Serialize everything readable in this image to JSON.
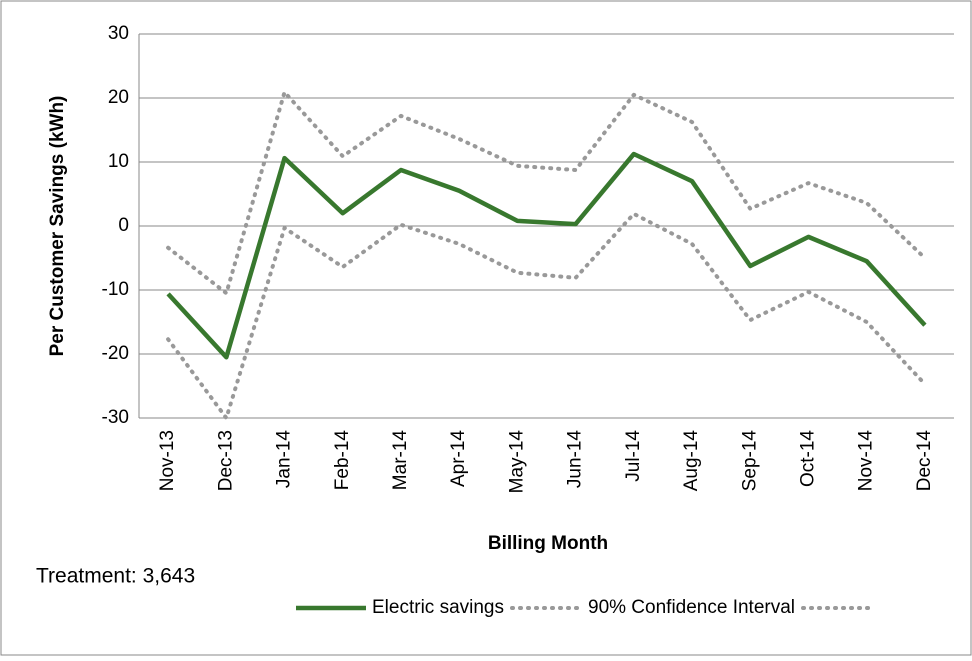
{
  "chart_data": {
    "type": "line",
    "x_label": "Billing Month",
    "y_label": "Per Customer Savings (kWh)",
    "annotation": "Treatment: 3,643",
    "categories": [
      "Nov-13",
      "Dec-13",
      "Jan-14",
      "Feb-14",
      "Mar-14",
      "Apr-14",
      "May-14",
      "Jun-14",
      "Jul-14",
      "Aug-14",
      "Sep-14",
      "Oct-14",
      "Nov-14",
      "Dec-14"
    ],
    "series": [
      {
        "name": "Electric savings",
        "color": "#38782e",
        "style": "solid",
        "values": [
          -10.6,
          -20.5,
          10.6,
          2.0,
          8.75,
          5.5,
          0.8,
          0.3,
          11.25,
          7.0,
          -6.25,
          -1.7,
          -5.5,
          -15.5
        ]
      },
      {
        "name": "90% Confidence Interval",
        "color": "#999999",
        "style": "dotted",
        "values": [
          -3.4,
          -10.5,
          20.9,
          10.9,
          17.2,
          13.6,
          9.4,
          8.75,
          20.5,
          16.25,
          2.7,
          6.7,
          3.6,
          -5.0
        ]
      },
      {
        "color": "#999999",
        "style": "dotted",
        "values": [
          -17.7,
          -30,
          -0.3,
          -6.4,
          0.2,
          -2.8,
          -7.3,
          -8.1,
          1.9,
          -2.8,
          -14.7,
          -10.3,
          -15.0,
          -24.7
        ]
      }
    ],
    "ylim": [
      -30,
      30
    ],
    "yticks": [
      -30,
      -20,
      -10,
      0,
      10,
      20,
      30
    ],
    "grid": true,
    "legend": "bottom"
  }
}
